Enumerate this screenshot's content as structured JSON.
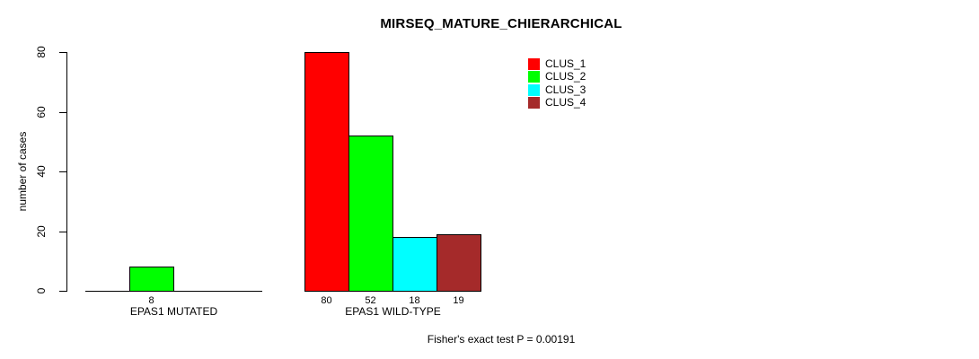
{
  "chart_data": {
    "type": "bar",
    "title": "MIRSEQ_MATURE_CHIERARCHICAL",
    "ylabel": "number of cases",
    "xlabel": "",
    "ylim": [
      0,
      80
    ],
    "yticks": [
      0,
      20,
      40,
      60,
      80
    ],
    "grid": false,
    "categories": [
      "EPAS1 MUTATED",
      "EPAS1 WILD-TYPE"
    ],
    "series": [
      {
        "name": "CLUS_1",
        "color": "#FF0000",
        "values": [
          0,
          80
        ]
      },
      {
        "name": "CLUS_2",
        "color": "#00FF00",
        "values": [
          8,
          52
        ]
      },
      {
        "name": "CLUS_3",
        "color": "#00FFFF",
        "values": [
          0,
          18
        ]
      },
      {
        "name": "CLUS_4",
        "color": "#A52A2A",
        "values": [
          0,
          19
        ]
      }
    ],
    "value_labels": [
      [
        "",
        "8",
        "",
        ""
      ],
      [
        "80",
        "52",
        "18",
        "19"
      ]
    ],
    "legend": {
      "position": "top-right",
      "entries": [
        "CLUS_1",
        "CLUS_2",
        "CLUS_3",
        "CLUS_4"
      ]
    },
    "annotation": "Fisher's exact test P = 0.00191",
    "colors": {
      "axis": "#000000",
      "text": "#000000",
      "background": "#FFFFFF"
    }
  }
}
